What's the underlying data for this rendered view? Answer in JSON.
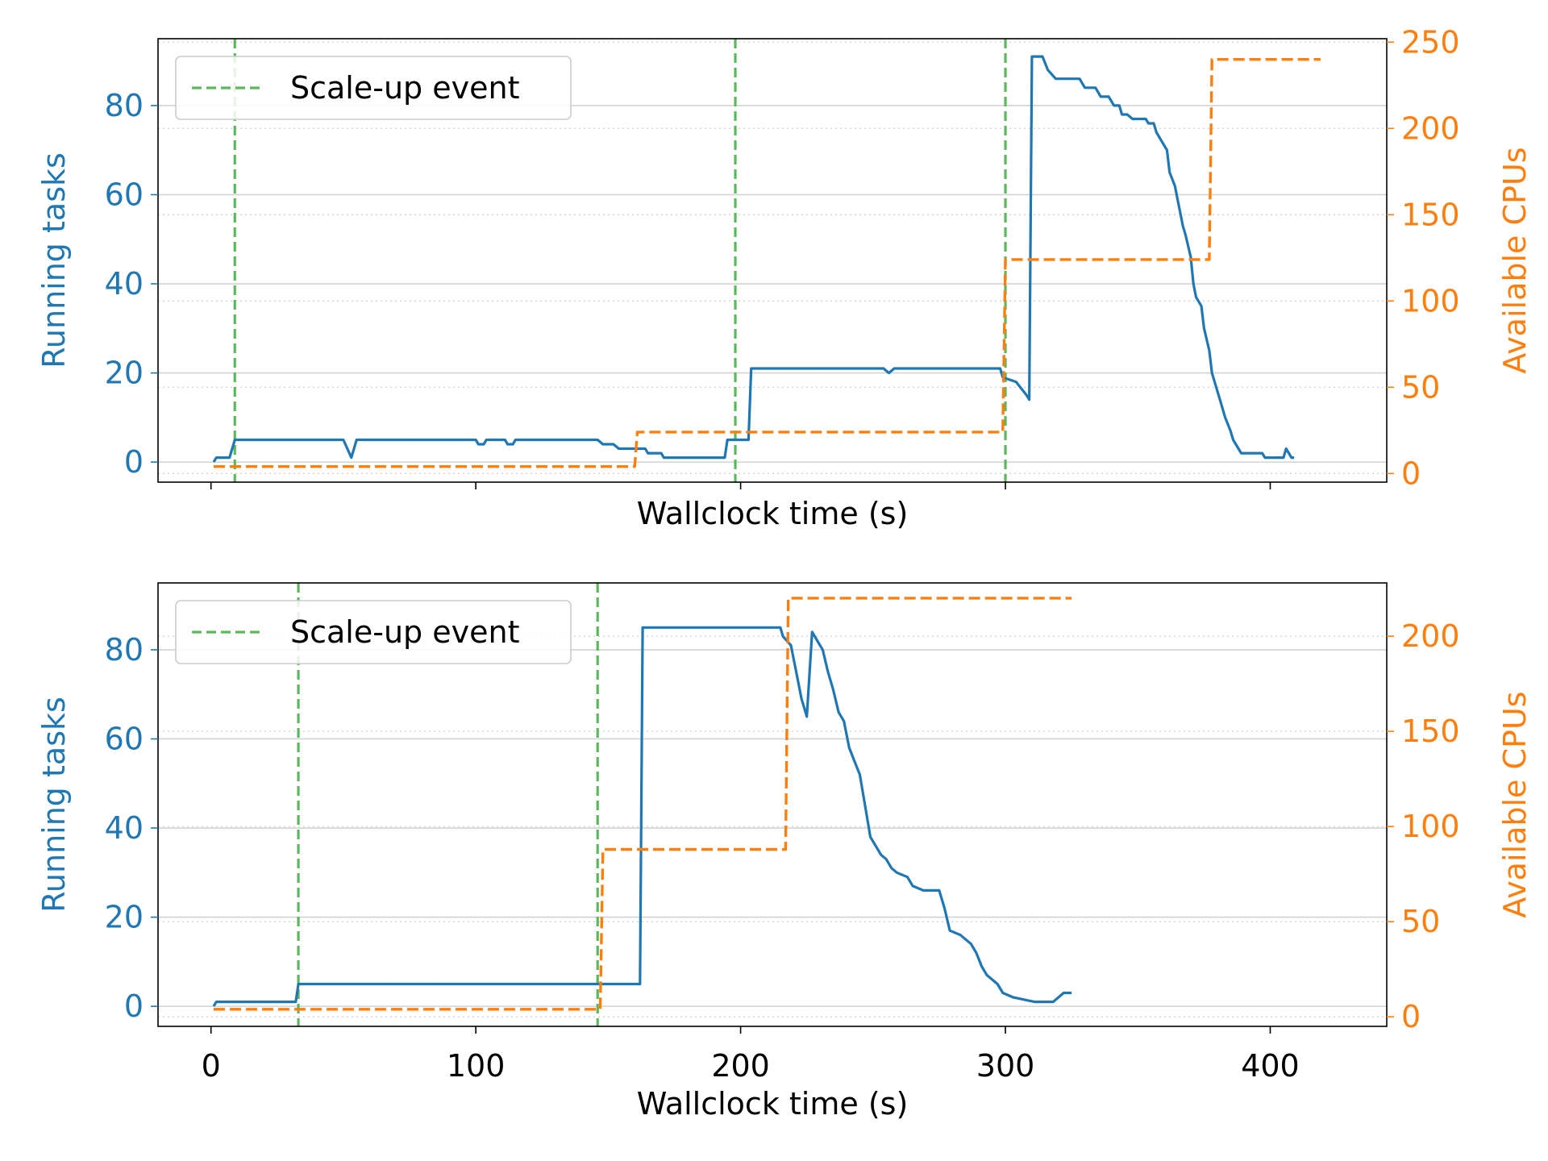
{
  "colors": {
    "tasks": "#1f77b4",
    "cpus": "#ff7f0e",
    "scaleup": "#5cb85c",
    "grid": "#d3d3d3",
    "axis": "#000000"
  },
  "legend_label": "Scale-up event",
  "chart_data": [
    {
      "type": "line",
      "xlabel": "Wallclock time (s)",
      "ylabel_left": "Running tasks",
      "ylabel_right": "Available CPUs",
      "xlim": [
        -20,
        444
      ],
      "ylim_left": [
        -4.5,
        95
      ],
      "ylim_right": [
        -5,
        252
      ],
      "xticks": [
        0,
        100,
        200,
        300,
        400
      ],
      "xtick_labels_visible": false,
      "yticks_left": [
        0,
        20,
        40,
        60,
        80
      ],
      "yticks_right": [
        0,
        50,
        100,
        150,
        200,
        250
      ],
      "grid": true,
      "legend": "top-left",
      "scaleup_events": [
        9,
        198,
        300
      ],
      "series": [
        {
          "name": "Running tasks",
          "axis": "left",
          "points": [
            [
              1,
              0
            ],
            [
              2,
              1
            ],
            [
              7,
              1
            ],
            [
              9,
              5
            ],
            [
              50,
              5
            ],
            [
              53,
              1
            ],
            [
              55,
              5
            ],
            [
              100,
              5
            ],
            [
              101,
              4
            ],
            [
              103,
              4
            ],
            [
              104,
              5
            ],
            [
              111,
              5
            ],
            [
              112,
              4
            ],
            [
              114,
              4
            ],
            [
              115,
              5
            ],
            [
              146,
              5
            ],
            [
              148,
              4
            ],
            [
              152,
              4
            ],
            [
              154,
              3
            ],
            [
              164,
              3
            ],
            [
              165,
              2
            ],
            [
              170,
              2
            ],
            [
              171,
              1
            ],
            [
              194,
              1
            ],
            [
              195,
              5
            ],
            [
              203,
              5
            ],
            [
              204,
              21
            ],
            [
              254,
              21
            ],
            [
              256,
              20
            ],
            [
              258,
              21
            ],
            [
              298,
              21
            ],
            [
              299,
              19
            ],
            [
              304,
              18
            ],
            [
              308,
              15
            ],
            [
              309,
              14
            ],
            [
              310,
              91
            ],
            [
              314,
              91
            ],
            [
              316,
              88
            ],
            [
              319,
              86
            ],
            [
              328,
              86
            ],
            [
              330,
              84
            ],
            [
              334,
              84
            ],
            [
              336,
              82
            ],
            [
              339,
              82
            ],
            [
              341,
              80
            ],
            [
              343,
              80
            ],
            [
              344,
              78
            ],
            [
              346,
              78
            ],
            [
              348,
              77
            ],
            [
              353,
              77
            ],
            [
              354,
              76
            ],
            [
              356,
              76
            ],
            [
              357,
              74
            ],
            [
              359,
              72
            ],
            [
              361,
              70
            ],
            [
              362,
              65
            ],
            [
              364,
              62
            ],
            [
              366,
              56
            ],
            [
              367,
              53
            ],
            [
              368,
              51
            ],
            [
              370,
              46
            ],
            [
              371,
              40
            ],
            [
              372,
              37
            ],
            [
              374,
              35
            ],
            [
              375,
              30
            ],
            [
              377,
              25
            ],
            [
              378,
              20
            ],
            [
              380,
              16
            ],
            [
              381,
              14
            ],
            [
              383,
              10
            ],
            [
              385,
              7
            ],
            [
              386,
              5
            ],
            [
              388,
              3
            ],
            [
              389,
              2
            ],
            [
              397,
              2
            ],
            [
              398,
              1
            ],
            [
              405,
              1
            ],
            [
              406,
              3
            ],
            [
              408,
              1
            ],
            [
              409,
              1
            ]
          ]
        },
        {
          "name": "Available CPUs",
          "axis": "right",
          "points": [
            [
              1,
              4
            ],
            [
              160,
              4
            ],
            [
              161,
              24
            ],
            [
              299,
              24
            ],
            [
              300,
              124
            ],
            [
              377,
              124
            ],
            [
              378,
              240
            ],
            [
              419,
              240
            ]
          ]
        }
      ]
    },
    {
      "type": "line",
      "xlabel": "Wallclock time (s)",
      "ylabel_left": "Running tasks",
      "ylabel_right": "Available CPUs",
      "xlim": [
        -20,
        444
      ],
      "ylim_left": [
        -4.5,
        95
      ],
      "ylim_right": [
        -5,
        228
      ],
      "xticks": [
        0,
        100,
        200,
        300,
        400
      ],
      "xtick_labels_visible": true,
      "yticks_left": [
        0,
        20,
        40,
        60,
        80
      ],
      "yticks_right": [
        0,
        50,
        100,
        150,
        200
      ],
      "grid": true,
      "legend": "top-left",
      "scaleup_events": [
        33,
        146
      ],
      "series": [
        {
          "name": "Running tasks",
          "axis": "left",
          "points": [
            [
              1,
              0
            ],
            [
              2,
              1
            ],
            [
              32,
              1
            ],
            [
              33,
              5
            ],
            [
              162,
              5
            ],
            [
              163,
              85
            ],
            [
              215,
              85
            ],
            [
              216,
              83
            ],
            [
              219,
              81
            ],
            [
              221,
              75
            ],
            [
              223,
              69
            ],
            [
              225,
              65
            ],
            [
              227,
              84
            ],
            [
              229,
              82
            ],
            [
              231,
              80
            ],
            [
              233,
              75
            ],
            [
              235,
              71
            ],
            [
              237,
              66
            ],
            [
              239,
              64
            ],
            [
              241,
              58
            ],
            [
              243,
              55
            ],
            [
              245,
              52
            ],
            [
              247,
              45
            ],
            [
              249,
              38
            ],
            [
              251,
              36
            ],
            [
              253,
              34
            ],
            [
              255,
              33
            ],
            [
              257,
              31
            ],
            [
              259,
              30
            ],
            [
              263,
              29
            ],
            [
              265,
              27
            ],
            [
              269,
              26
            ],
            [
              275,
              26
            ],
            [
              277,
              22
            ],
            [
              279,
              17
            ],
            [
              283,
              16
            ],
            [
              287,
              14
            ],
            [
              289,
              12
            ],
            [
              291,
              9
            ],
            [
              293,
              7
            ],
            [
              297,
              5
            ],
            [
              299,
              3
            ],
            [
              303,
              2
            ],
            [
              311,
              1
            ],
            [
              318,
              1
            ],
            [
              320,
              2
            ],
            [
              322,
              3
            ],
            [
              325,
              3
            ]
          ]
        },
        {
          "name": "Available CPUs",
          "axis": "right",
          "points": [
            [
              1,
              4
            ],
            [
              147,
              4
            ],
            [
              148,
              88
            ],
            [
              217,
              88
            ],
            [
              218,
              220
            ],
            [
              325,
              220
            ]
          ]
        }
      ]
    }
  ]
}
